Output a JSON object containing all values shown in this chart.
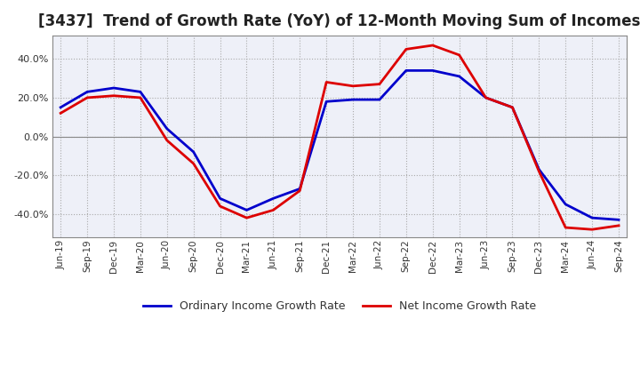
{
  "title": "[3437]  Trend of Growth Rate (YoY) of 12-Month Moving Sum of Incomes",
  "title_fontsize": 12,
  "plot_bg_color": "#eef0f8",
  "fig_bg_color": "#ffffff",
  "grid_color": "#aaaaaa",
  "x_labels": [
    "Jun-19",
    "Sep-19",
    "Dec-19",
    "Mar-20",
    "Jun-20",
    "Sep-20",
    "Dec-20",
    "Mar-21",
    "Jun-21",
    "Sep-21",
    "Dec-21",
    "Mar-22",
    "Jun-22",
    "Sep-22",
    "Dec-22",
    "Mar-23",
    "Jun-23",
    "Sep-23",
    "Dec-23",
    "Mar-24",
    "Jun-24",
    "Sep-24"
  ],
  "ordinary_income": [
    15.0,
    23.0,
    25.0,
    23.0,
    4.0,
    -8.0,
    -32.0,
    -38.0,
    -32.0,
    -27.0,
    18.0,
    19.0,
    19.0,
    34.0,
    34.0,
    31.0,
    20.0,
    15.0,
    -17.0,
    -35.0,
    -42.0,
    -43.0
  ],
  "net_income": [
    12.0,
    20.0,
    21.0,
    20.0,
    -2.0,
    -14.0,
    -36.0,
    -42.0,
    -38.0,
    -28.0,
    28.0,
    26.0,
    27.0,
    45.0,
    47.0,
    42.0,
    20.0,
    15.0,
    -18.0,
    -47.0,
    -48.0,
    -46.0
  ],
  "ordinary_color": "#0000cc",
  "net_color": "#dd0000",
  "ylim": [
    -52,
    52
  ],
  "yticks": [
    -40.0,
    -20.0,
    0.0,
    20.0,
    40.0
  ],
  "legend_labels": [
    "Ordinary Income Growth Rate",
    "Net Income Growth Rate"
  ],
  "line_width": 2.0
}
